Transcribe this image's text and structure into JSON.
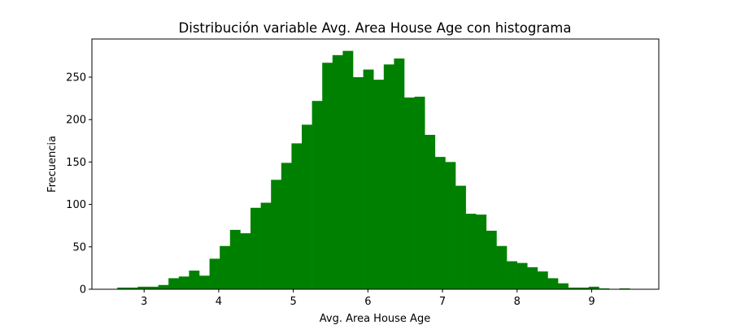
{
  "chart_data": {
    "type": "bar",
    "title": "Distribución variable Avg. Area House Age con histograma",
    "xlabel": "Avg. Area House Age",
    "ylabel": "Frecuencia",
    "bar_color": "#008000",
    "xlim": [
      2.3,
      9.9
    ],
    "ylim": [
      0,
      295
    ],
    "xticks": [
      3,
      4,
      5,
      6,
      7,
      8,
      9
    ],
    "yticks": [
      0,
      50,
      100,
      150,
      200,
      250
    ],
    "bin_start": 2.64,
    "bin_width": 0.1374,
    "values": [
      2,
      2,
      3,
      3,
      5,
      13,
      15,
      22,
      16,
      36,
      51,
      70,
      66,
      96,
      102,
      129,
      149,
      172,
      194,
      222,
      267,
      276,
      281,
      250,
      259,
      247,
      265,
      272,
      226,
      227,
      182,
      156,
      150,
      122,
      89,
      88,
      69,
      51,
      33,
      31,
      26,
      21,
      13,
      7,
      2,
      2,
      3,
      1,
      0,
      1
    ]
  }
}
